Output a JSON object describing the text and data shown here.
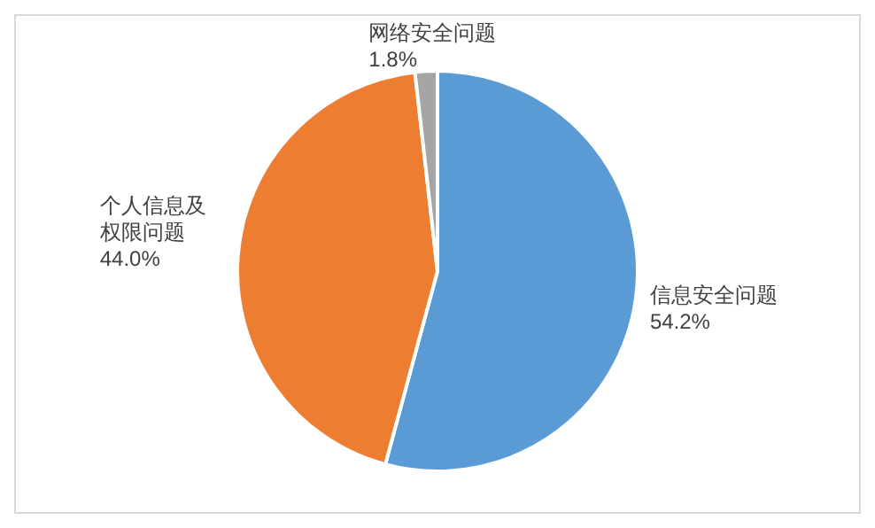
{
  "chart_data": {
    "type": "pie",
    "categories": [
      "信息安全问题",
      "个人信息及权限问题",
      "网络安全问题"
    ],
    "values": [
      54.2,
      44.0,
      1.8
    ],
    "colors": [
      "#5b9bd5",
      "#ed7d31",
      "#a5a5a5"
    ],
    "value_labels": [
      "54.2%",
      "44.0%",
      "1.8%"
    ],
    "legend": false
  }
}
